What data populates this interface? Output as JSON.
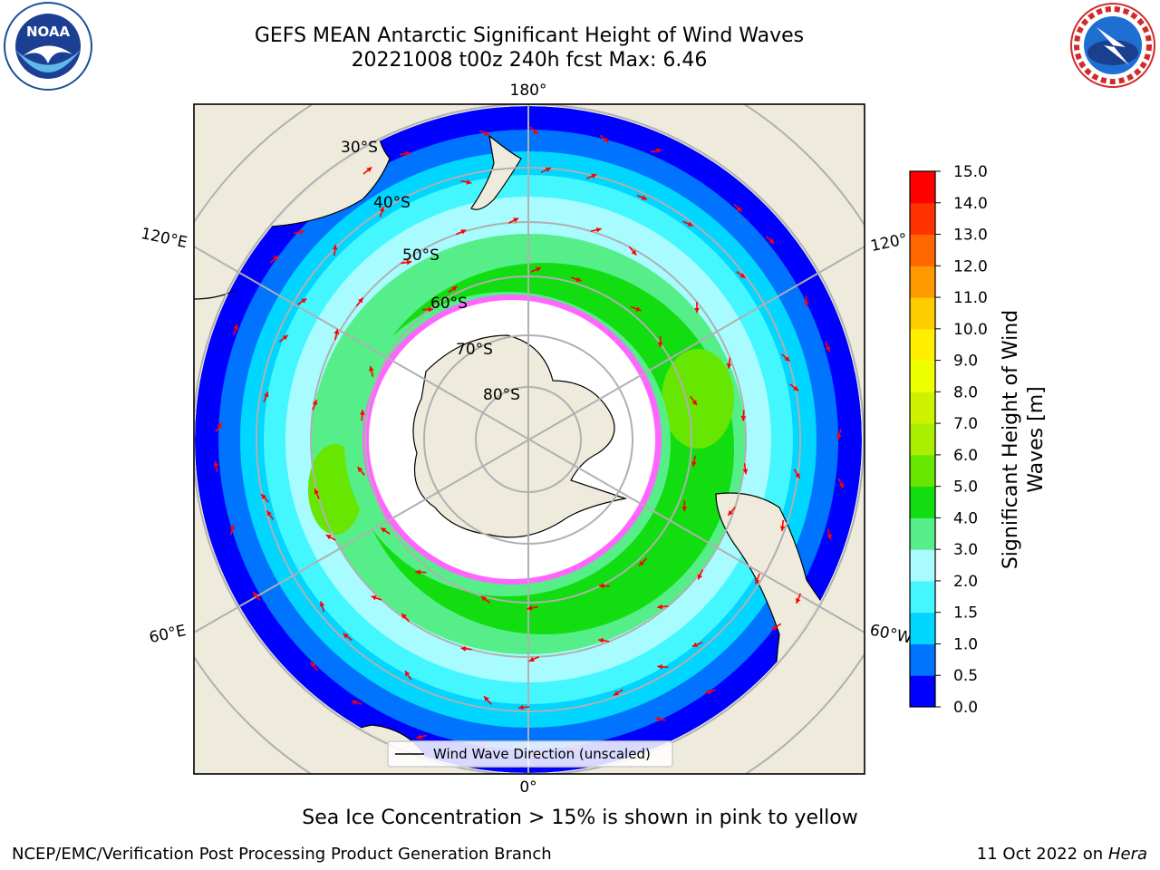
{
  "header": {
    "title_line1": "GEFS MEAN Antarctic Significant Height of Wind Waves",
    "title_line2": "20221008 t00z 240h fcst   Max: 6.46"
  },
  "logos": {
    "noaa": {
      "name": "noaa-logo",
      "text": "NOAA",
      "ring_text": "NATIONAL OCEANIC AND ATMOSPHERIC ADMINISTRATION · U.S. DEPARTMENT OF COMMERCE"
    },
    "nws": {
      "name": "nws-logo",
      "ring_text": "NATIONAL WEATHER SERVICE"
    }
  },
  "map": {
    "projection": "south-polar-stereographic",
    "lon_labels": {
      "top": "180°",
      "bottom": "0°",
      "upper_left": "120°E",
      "upper_right": "120°",
      "lower_left": "60°E",
      "lower_right": "60°W"
    },
    "lat_labels": [
      "30°S",
      "40°S",
      "50°S",
      "60°S",
      "70°S",
      "80°S"
    ],
    "legend_label": "Wind Wave Direction (unscaled)",
    "colors": {
      "land": "#efebdc",
      "ocean_low": "#0000ff",
      "ocean_mid": "#00e5ff",
      "ocean_high": "#33dd33",
      "ice_edge": "#ff33ff",
      "arrow": "#ff0000",
      "grid": "#b0b0b0"
    }
  },
  "colorbar": {
    "label": "Significant Height of Wind\nWaves [m]",
    "ticks": [
      "0.0",
      "0.5",
      "1.0",
      "1.5",
      "2.0",
      "3.0",
      "4.0",
      "5.0",
      "6.0",
      "7.0",
      "8.0",
      "9.0",
      "10.0",
      "11.0",
      "12.0",
      "13.0",
      "14.0",
      "15.0"
    ],
    "colors": [
      "#0000ff",
      "#0073ff",
      "#00d6ff",
      "#44f7ff",
      "#a8fcff",
      "#55ee88",
      "#11dd11",
      "#66e600",
      "#aaee00",
      "#ccf200",
      "#eeff00",
      "#ffee00",
      "#ffcc00",
      "#ff9900",
      "#ff6600",
      "#ff3300",
      "#ff0000"
    ]
  },
  "footer": {
    "note": "Sea Ice Concentration > 15% is shown in pink to yellow",
    "left": "NCEP/EMC/Verification Post Processing Product Generation Branch",
    "right_date": "11 Oct 2022 on ",
    "right_machine": "Hera"
  }
}
